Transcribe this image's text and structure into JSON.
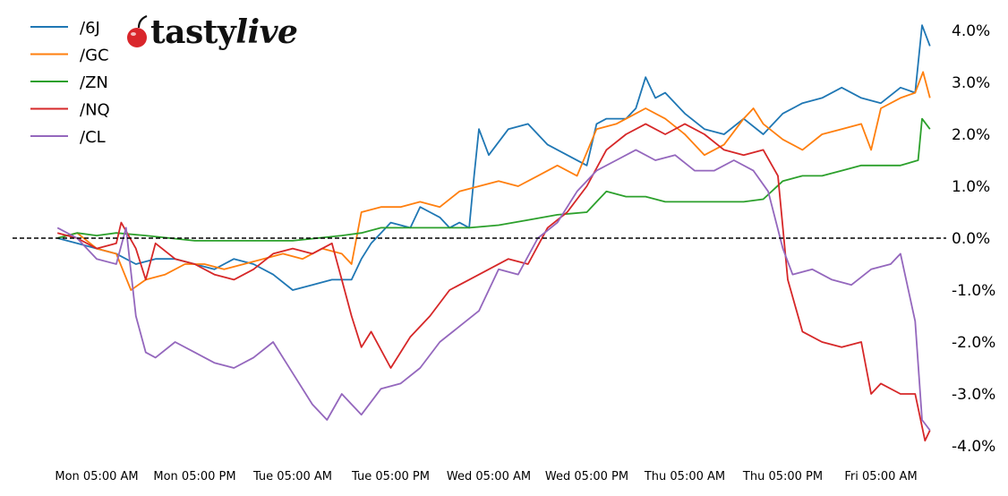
{
  "logo": {
    "brand_part1": "tasty",
    "brand_part2": "live",
    "brand_color": "#d9262b"
  },
  "chart_data": {
    "type": "line",
    "title": "",
    "xlabel": "",
    "ylabel": "",
    "x_categories": [
      "Mon 05:00 AM",
      "Mon 05:00 PM",
      "Tue 05:00 AM",
      "Tue 05:00 PM",
      "Wed 05:00 AM",
      "Wed 05:00 PM",
      "Thu 05:00 AM",
      "Thu 05:00 PM",
      "Fri 05:00 AM"
    ],
    "x_range": [
      0,
      8.4
    ],
    "y_unit": "%",
    "ylim": [
      -4.2,
      4.2
    ],
    "yticks": [
      4.0,
      3.0,
      2.0,
      1.0,
      0.0,
      -1.0,
      -2.0,
      -3.0,
      -4.0
    ],
    "ytick_labels": [
      "4.0%",
      "3.0%",
      "2.0%",
      "1.0%",
      "0.0%",
      "-1.0%",
      "-2.0%",
      "-3.0%",
      "-4.0%"
    ],
    "y_axis_side": "right",
    "reference_line": {
      "y": 0.0,
      "style": "dashed",
      "color": "#000000"
    },
    "grid": false,
    "legend_position": "top-left",
    "series": [
      {
        "name": "/6J",
        "color": "#1f77b4",
        "points": [
          [
            -0.4,
            0.0
          ],
          [
            -0.2,
            -0.1
          ],
          [
            0.0,
            -0.2
          ],
          [
            0.2,
            -0.3
          ],
          [
            0.4,
            -0.5
          ],
          [
            0.6,
            -0.4
          ],
          [
            0.8,
            -0.4
          ],
          [
            1.0,
            -0.5
          ],
          [
            1.2,
            -0.6
          ],
          [
            1.4,
            -0.4
          ],
          [
            1.6,
            -0.5
          ],
          [
            1.8,
            -0.7
          ],
          [
            2.0,
            -1.0
          ],
          [
            2.2,
            -0.9
          ],
          [
            2.4,
            -0.8
          ],
          [
            2.6,
            -0.8
          ],
          [
            2.7,
            -0.4
          ],
          [
            2.8,
            -0.1
          ],
          [
            2.9,
            0.1
          ],
          [
            3.0,
            0.3
          ],
          [
            3.2,
            0.2
          ],
          [
            3.3,
            0.6
          ],
          [
            3.4,
            0.5
          ],
          [
            3.5,
            0.4
          ],
          [
            3.6,
            0.2
          ],
          [
            3.7,
            0.3
          ],
          [
            3.8,
            0.2
          ],
          [
            3.85,
            1.2
          ],
          [
            3.9,
            2.1
          ],
          [
            4.0,
            1.6
          ],
          [
            4.2,
            2.1
          ],
          [
            4.4,
            2.2
          ],
          [
            4.6,
            1.8
          ],
          [
            4.8,
            1.6
          ],
          [
            5.0,
            1.4
          ],
          [
            5.1,
            2.2
          ],
          [
            5.2,
            2.3
          ],
          [
            5.4,
            2.3
          ],
          [
            5.5,
            2.5
          ],
          [
            5.6,
            3.1
          ],
          [
            5.7,
            2.7
          ],
          [
            5.8,
            2.8
          ],
          [
            6.0,
            2.4
          ],
          [
            6.2,
            2.1
          ],
          [
            6.4,
            2.0
          ],
          [
            6.6,
            2.3
          ],
          [
            6.8,
            2.0
          ],
          [
            7.0,
            2.4
          ],
          [
            7.2,
            2.6
          ],
          [
            7.4,
            2.7
          ],
          [
            7.6,
            2.9
          ],
          [
            7.8,
            2.7
          ],
          [
            8.0,
            2.6
          ],
          [
            8.2,
            2.9
          ],
          [
            8.35,
            2.8
          ],
          [
            8.42,
            4.1
          ],
          [
            8.5,
            3.7
          ]
        ]
      },
      {
        "name": "/GC",
        "color": "#ff7f0e",
        "points": [
          [
            -0.4,
            0.0
          ],
          [
            -0.2,
            0.1
          ],
          [
            0.0,
            -0.2
          ],
          [
            0.2,
            -0.3
          ],
          [
            0.35,
            -1.0
          ],
          [
            0.5,
            -0.8
          ],
          [
            0.7,
            -0.7
          ],
          [
            0.9,
            -0.5
          ],
          [
            1.1,
            -0.5
          ],
          [
            1.3,
            -0.6
          ],
          [
            1.5,
            -0.5
          ],
          [
            1.7,
            -0.4
          ],
          [
            1.9,
            -0.3
          ],
          [
            2.1,
            -0.4
          ],
          [
            2.3,
            -0.2
          ],
          [
            2.5,
            -0.3
          ],
          [
            2.6,
            -0.5
          ],
          [
            2.7,
            0.5
          ],
          [
            2.9,
            0.6
          ],
          [
            3.1,
            0.6
          ],
          [
            3.3,
            0.7
          ],
          [
            3.5,
            0.6
          ],
          [
            3.7,
            0.9
          ],
          [
            3.9,
            1.0
          ],
          [
            4.1,
            1.1
          ],
          [
            4.3,
            1.0
          ],
          [
            4.5,
            1.2
          ],
          [
            4.7,
            1.4
          ],
          [
            4.9,
            1.2
          ],
          [
            5.1,
            2.1
          ],
          [
            5.3,
            2.2
          ],
          [
            5.5,
            2.4
          ],
          [
            5.6,
            2.5
          ],
          [
            5.8,
            2.3
          ],
          [
            6.0,
            2.0
          ],
          [
            6.2,
            1.6
          ],
          [
            6.4,
            1.8
          ],
          [
            6.6,
            2.3
          ],
          [
            6.7,
            2.5
          ],
          [
            6.8,
            2.2
          ],
          [
            7.0,
            1.9
          ],
          [
            7.2,
            1.7
          ],
          [
            7.4,
            2.0
          ],
          [
            7.6,
            2.1
          ],
          [
            7.8,
            2.2
          ],
          [
            7.9,
            1.7
          ],
          [
            8.0,
            2.5
          ],
          [
            8.2,
            2.7
          ],
          [
            8.35,
            2.8
          ],
          [
            8.43,
            3.2
          ],
          [
            8.5,
            2.7
          ]
        ]
      },
      {
        "name": "/ZN",
        "color": "#2ca02c",
        "points": [
          [
            -0.4,
            0.0
          ],
          [
            -0.2,
            0.1
          ],
          [
            0.0,
            0.05
          ],
          [
            0.2,
            0.1
          ],
          [
            0.5,
            0.05
          ],
          [
            1.0,
            -0.05
          ],
          [
            1.5,
            -0.05
          ],
          [
            2.0,
            -0.05
          ],
          [
            2.5,
            0.05
          ],
          [
            2.7,
            0.1
          ],
          [
            2.9,
            0.2
          ],
          [
            3.2,
            0.2
          ],
          [
            3.5,
            0.2
          ],
          [
            3.8,
            0.2
          ],
          [
            4.1,
            0.25
          ],
          [
            4.4,
            0.35
          ],
          [
            4.7,
            0.45
          ],
          [
            5.0,
            0.5
          ],
          [
            5.1,
            0.7
          ],
          [
            5.2,
            0.9
          ],
          [
            5.4,
            0.8
          ],
          [
            5.6,
            0.8
          ],
          [
            5.8,
            0.7
          ],
          [
            6.0,
            0.7
          ],
          [
            6.2,
            0.7
          ],
          [
            6.4,
            0.7
          ],
          [
            6.6,
            0.7
          ],
          [
            6.8,
            0.75
          ],
          [
            7.0,
            1.1
          ],
          [
            7.2,
            1.2
          ],
          [
            7.4,
            1.2
          ],
          [
            7.6,
            1.3
          ],
          [
            7.8,
            1.4
          ],
          [
            8.0,
            1.4
          ],
          [
            8.2,
            1.4
          ],
          [
            8.38,
            1.5
          ],
          [
            8.42,
            2.3
          ],
          [
            8.5,
            2.1
          ]
        ]
      },
      {
        "name": "/NQ",
        "color": "#d62728",
        "points": [
          [
            -0.4,
            0.1
          ],
          [
            -0.2,
            0.0
          ],
          [
            0.0,
            -0.2
          ],
          [
            0.2,
            -0.1
          ],
          [
            0.25,
            0.3
          ],
          [
            0.4,
            -0.2
          ],
          [
            0.5,
            -0.8
          ],
          [
            0.6,
            -0.1
          ],
          [
            0.8,
            -0.4
          ],
          [
            1.0,
            -0.5
          ],
          [
            1.2,
            -0.7
          ],
          [
            1.4,
            -0.8
          ],
          [
            1.6,
            -0.6
          ],
          [
            1.8,
            -0.3
          ],
          [
            2.0,
            -0.2
          ],
          [
            2.2,
            -0.3
          ],
          [
            2.4,
            -0.1
          ],
          [
            2.5,
            -0.8
          ],
          [
            2.6,
            -1.5
          ],
          [
            2.7,
            -2.1
          ],
          [
            2.8,
            -1.8
          ],
          [
            3.0,
            -2.5
          ],
          [
            3.2,
            -1.9
          ],
          [
            3.4,
            -1.5
          ],
          [
            3.6,
            -1.0
          ],
          [
            3.8,
            -0.8
          ],
          [
            4.0,
            -0.6
          ],
          [
            4.2,
            -0.4
          ],
          [
            4.4,
            -0.5
          ],
          [
            4.6,
            0.2
          ],
          [
            4.8,
            0.5
          ],
          [
            5.0,
            1.0
          ],
          [
            5.2,
            1.7
          ],
          [
            5.4,
            2.0
          ],
          [
            5.6,
            2.2
          ],
          [
            5.8,
            2.0
          ],
          [
            6.0,
            2.2
          ],
          [
            6.2,
            2.0
          ],
          [
            6.4,
            1.7
          ],
          [
            6.6,
            1.6
          ],
          [
            6.8,
            1.7
          ],
          [
            6.95,
            1.2
          ],
          [
            7.05,
            -0.8
          ],
          [
            7.2,
            -1.8
          ],
          [
            7.4,
            -2.0
          ],
          [
            7.6,
            -2.1
          ],
          [
            7.8,
            -2.0
          ],
          [
            7.9,
            -3.0
          ],
          [
            8.0,
            -2.8
          ],
          [
            8.2,
            -3.0
          ],
          [
            8.35,
            -3.0
          ],
          [
            8.45,
            -3.9
          ],
          [
            8.5,
            -3.7
          ]
        ]
      },
      {
        "name": "/CL",
        "color": "#9467bd",
        "points": [
          [
            -0.4,
            0.2
          ],
          [
            -0.2,
            0.0
          ],
          [
            0.0,
            -0.4
          ],
          [
            0.2,
            -0.5
          ],
          [
            0.3,
            0.2
          ],
          [
            0.4,
            -1.5
          ],
          [
            0.5,
            -2.2
          ],
          [
            0.6,
            -2.3
          ],
          [
            0.8,
            -2.0
          ],
          [
            1.0,
            -2.2
          ],
          [
            1.2,
            -2.4
          ],
          [
            1.4,
            -2.5
          ],
          [
            1.6,
            -2.3
          ],
          [
            1.8,
            -2.0
          ],
          [
            2.0,
            -2.6
          ],
          [
            2.2,
            -3.2
          ],
          [
            2.35,
            -3.5
          ],
          [
            2.5,
            -3.0
          ],
          [
            2.7,
            -3.4
          ],
          [
            2.9,
            -2.9
          ],
          [
            3.1,
            -2.8
          ],
          [
            3.3,
            -2.5
          ],
          [
            3.5,
            -2.0
          ],
          [
            3.7,
            -1.7
          ],
          [
            3.9,
            -1.4
          ],
          [
            4.1,
            -0.6
          ],
          [
            4.3,
            -0.7
          ],
          [
            4.5,
            0.0
          ],
          [
            4.7,
            0.3
          ],
          [
            4.9,
            0.9
          ],
          [
            5.1,
            1.3
          ],
          [
            5.3,
            1.5
          ],
          [
            5.5,
            1.7
          ],
          [
            5.7,
            1.5
          ],
          [
            5.9,
            1.6
          ],
          [
            6.1,
            1.3
          ],
          [
            6.3,
            1.3
          ],
          [
            6.5,
            1.5
          ],
          [
            6.7,
            1.3
          ],
          [
            6.85,
            0.9
          ],
          [
            7.0,
            -0.2
          ],
          [
            7.1,
            -0.7
          ],
          [
            7.3,
            -0.6
          ],
          [
            7.5,
            -0.8
          ],
          [
            7.7,
            -0.9
          ],
          [
            7.9,
            -0.6
          ],
          [
            8.1,
            -0.5
          ],
          [
            8.2,
            -0.3
          ],
          [
            8.35,
            -1.6
          ],
          [
            8.42,
            -3.5
          ],
          [
            8.5,
            -3.7
          ]
        ]
      }
    ]
  }
}
